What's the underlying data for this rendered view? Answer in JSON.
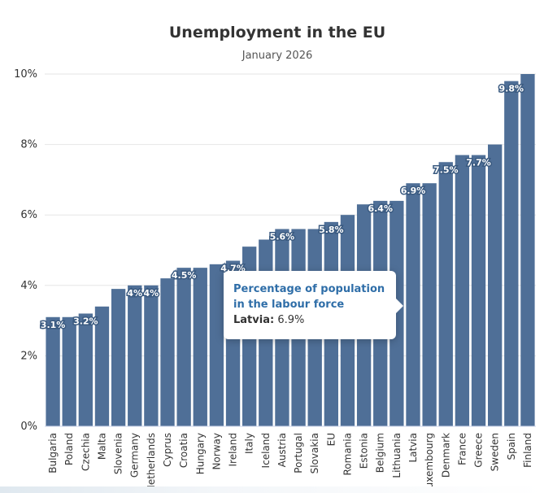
{
  "chart_data": {
    "type": "bar",
    "title": "Unemployment in the EU",
    "subtitle": "January 2026",
    "xlabel": "",
    "ylabel": "",
    "ylim": [
      0,
      10
    ],
    "yticks": [
      0,
      2,
      4,
      6,
      8,
      10
    ],
    "ytick_labels": [
      "0%",
      "2%",
      "4%",
      "6%",
      "8%",
      "10%"
    ],
    "bar_color": "#4f6f97",
    "gridlines": true,
    "categories": [
      "Bulgaria",
      "Poland",
      "Czechia",
      "Malta",
      "Slovenia",
      "Germany",
      "Netherlands",
      "Cyprus",
      "Croatia",
      "Hungary",
      "Norway",
      "Ireland",
      "Italy",
      "Iceland",
      "Austria",
      "Portugal",
      "Slovakia",
      "EU",
      "Romania",
      "Estonia",
      "Belgium",
      "Lithuania",
      "Latvia",
      "Luxembourg",
      "Denmark",
      "France",
      "Greece",
      "Sweden",
      "Spain",
      "Finland"
    ],
    "values": [
      3.1,
      3.1,
      3.2,
      3.4,
      3.9,
      4.0,
      4.0,
      4.2,
      4.5,
      4.5,
      4.6,
      4.7,
      5.1,
      5.3,
      5.6,
      5.6,
      5.6,
      5.8,
      6.0,
      6.3,
      6.4,
      6.4,
      6.9,
      6.9,
      7.5,
      7.7,
      7.7,
      8.0,
      9.8,
      10.3
    ],
    "data_labels": [
      {
        "index": 0,
        "text": "3.1%"
      },
      {
        "index": 2,
        "text": "3.2%"
      },
      {
        "index": 5,
        "text": "4%"
      },
      {
        "index": 6,
        "text": "4%"
      },
      {
        "index": 8,
        "text": "4.5%"
      },
      {
        "index": 11,
        "text": "4.7%"
      },
      {
        "index": 14,
        "text": "5.6%"
      },
      {
        "index": 17,
        "text": "5.8%"
      },
      {
        "index": 20,
        "text": "6.4%"
      },
      {
        "index": 22,
        "text": "6.9%"
      },
      {
        "index": 24,
        "text": "7.5%"
      },
      {
        "index": 26,
        "text": "7.7%"
      },
      {
        "index": 28,
        "text": "9.8%"
      }
    ]
  },
  "tooltip": {
    "header": "Percentage of population in the labour force",
    "label": "Latvia:",
    "value": "6.9%"
  }
}
